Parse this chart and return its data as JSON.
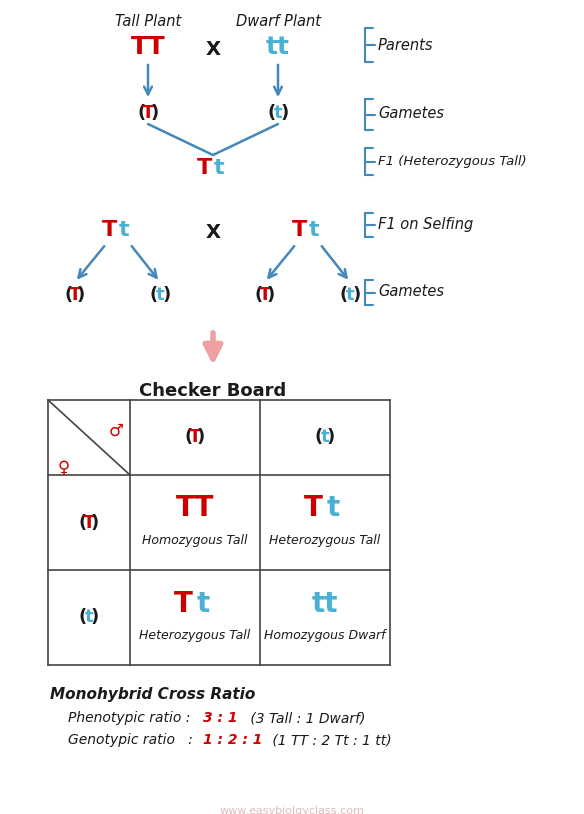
{
  "bg_color": "#ffffff",
  "red": "#cc0000",
  "light_blue": "#4ab0d4",
  "black": "#1a1a1a",
  "arrow_color": "#4488bb",
  "pink_arrow": "#f0a0a0",
  "bracket_color": "#4488bb",
  "title": "Checker Board",
  "ratio_title": "Monohybrid Cross Ratio",
  "watermark": "www.easybiolgyclass.com"
}
